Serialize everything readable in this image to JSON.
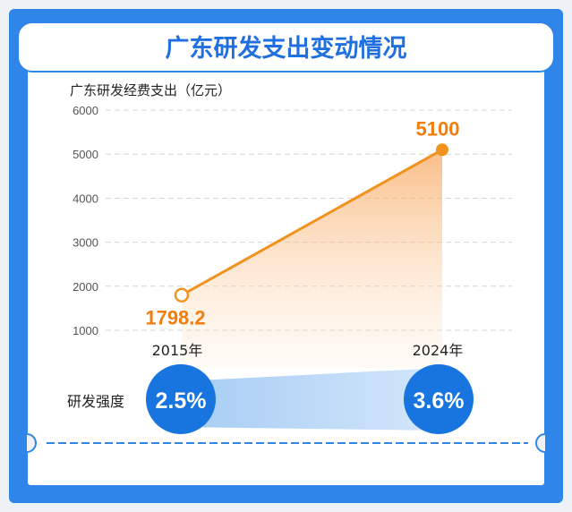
{
  "title": "广东研发支出变动情况",
  "colors": {
    "accent_blue": "#1f6fe0",
    "border_blue": "#2f86e8",
    "line_orange": "#f0921e",
    "value_orange": "#f07d0c",
    "circle_blue": "#1874df"
  },
  "chart_data": {
    "type": "line",
    "ylabel": "广东研发经费支出（亿元）",
    "categories": [
      "2015年",
      "2024年"
    ],
    "values": [
      1798.2,
      5100
    ],
    "value_labels": [
      "1798.2",
      "5100"
    ],
    "ylim": [
      1000,
      6000
    ],
    "yticks": [
      1000,
      2000,
      3000,
      4000,
      5000,
      6000
    ],
    "grid": true,
    "intensity": {
      "label": "研发强度",
      "values": [
        "2.5%",
        "3.6%"
      ]
    }
  }
}
